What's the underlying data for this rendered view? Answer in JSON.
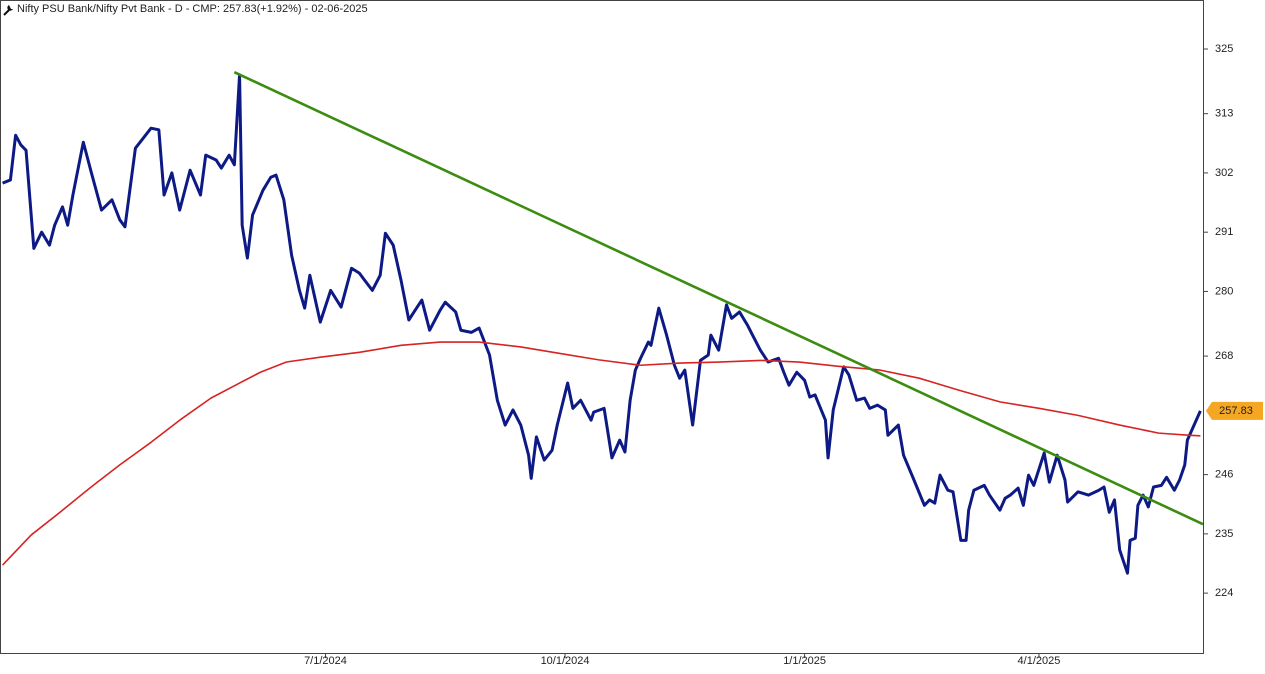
{
  "chart_data": {
    "type": "line",
    "title": "Nifty PSU Bank/Nifty Pvt Bank - D - CMP: 257.83(+1.92%) - 02-06-2025",
    "price_tag": "257.83",
    "xlim": [
      "2024-02-27",
      "2025-06-03"
    ],
    "xticks": [
      {
        "value": "2024-07-01",
        "label": "7/1/2024"
      },
      {
        "value": "2024-10-01",
        "label": "10/1/2024"
      },
      {
        "value": "2025-01-01",
        "label": "1/1/2025"
      },
      {
        "value": "2025-04-01",
        "label": "4/1/2025"
      }
    ],
    "ylim": [
      212.7,
      334.1
    ],
    "yticks": [
      224,
      235,
      246,
      268,
      280,
      291,
      302,
      313,
      325
    ],
    "grid": false,
    "series": [
      {
        "color": "#0d1a85",
        "width": 3,
        "x": [
          "2024-02-28",
          "2024-03-02",
          "2024-03-04",
          "2024-03-06",
          "2024-03-08",
          "2024-03-11",
          "2024-03-14",
          "2024-03-17",
          "2024-03-19",
          "2024-03-22",
          "2024-03-24",
          "2024-03-26",
          "2024-03-30",
          "2024-04-02",
          "2024-04-06",
          "2024-04-10",
          "2024-04-13",
          "2024-04-15",
          "2024-04-19",
          "2024-04-25",
          "2024-04-28",
          "2024-04-30",
          "2024-05-03",
          "2024-05-06",
          "2024-05-10",
          "2024-05-14",
          "2024-05-16",
          "2024-05-20",
          "2024-05-22",
          "2024-05-25",
          "2024-05-27",
          "2024-05-29",
          "2024-05-30",
          "2024-06-01",
          "2024-06-03",
          "2024-06-07",
          "2024-06-10",
          "2024-06-12",
          "2024-06-15",
          "2024-06-18",
          "2024-06-21",
          "2024-06-23",
          "2024-06-25",
          "2024-06-29",
          "2024-07-03",
          "2024-07-07",
          "2024-07-11",
          "2024-07-14",
          "2024-07-16",
          "2024-07-19",
          "2024-07-22",
          "2024-07-24",
          "2024-07-27",
          "2024-07-30",
          "2024-08-02",
          "2024-08-04",
          "2024-08-07",
          "2024-08-10",
          "2024-08-14",
          "2024-08-16",
          "2024-08-20",
          "2024-08-22",
          "2024-08-26",
          "2024-08-29",
          "2024-09-02",
          "2024-09-05",
          "2024-09-08",
          "2024-09-11",
          "2024-09-14",
          "2024-09-17",
          "2024-09-18",
          "2024-09-20",
          "2024-09-23",
          "2024-09-26",
          "2024-09-28",
          "2024-10-02",
          "2024-10-04",
          "2024-10-07",
          "2024-10-11",
          "2024-10-12",
          "2024-10-16",
          "2024-10-19",
          "2024-10-22",
          "2024-10-24",
          "2024-10-26",
          "2024-10-28",
          "2024-10-30",
          "2024-11-02",
          "2024-11-03",
          "2024-11-06",
          "2024-11-09",
          "2024-11-12",
          "2024-11-14",
          "2024-11-16",
          "2024-11-19",
          "2024-11-22",
          "2024-11-25",
          "2024-11-26",
          "2024-11-29",
          "2024-12-02",
          "2024-12-04",
          "2024-12-07",
          "2024-12-10",
          "2024-12-12",
          "2024-12-15",
          "2024-12-18",
          "2024-12-22",
          "2024-12-24",
          "2024-12-26",
          "2024-12-29",
          "2025-01-01",
          "2025-01-03",
          "2025-01-05",
          "2025-01-09",
          "2025-01-10",
          "2025-01-12",
          "2025-01-16",
          "2025-01-18",
          "2025-01-21",
          "2025-01-24",
          "2025-01-26",
          "2025-01-29",
          "2025-02-01",
          "2025-02-02",
          "2025-02-06",
          "2025-02-08",
          "2025-02-12",
          "2025-02-16",
          "2025-02-18",
          "2025-02-20",
          "2025-02-22",
          "2025-02-25",
          "2025-02-27",
          "2025-03-02",
          "2025-03-04",
          "2025-03-05",
          "2025-03-07",
          "2025-03-11",
          "2025-03-13",
          "2025-03-17",
          "2025-03-19",
          "2025-03-21",
          "2025-03-24",
          "2025-03-26",
          "2025-03-28",
          "2025-03-30",
          "2025-04-03",
          "2025-04-05",
          "2025-04-08",
          "2025-04-11",
          "2025-04-12",
          "2025-04-16",
          "2025-04-20",
          "2025-04-24",
          "2025-04-26",
          "2025-04-28",
          "2025-04-30",
          "2025-05-02",
          "2025-05-05",
          "2025-05-06",
          "2025-05-08",
          "2025-05-09",
          "2025-05-11",
          "2025-05-13",
          "2025-05-15",
          "2025-05-18",
          "2025-05-20",
          "2025-05-23",
          "2025-05-25",
          "2025-05-27",
          "2025-05-28",
          "2025-06-02"
        ],
        "values": [
          300.1,
          300.7,
          309.0,
          307.2,
          306.2,
          288.0,
          291.0,
          288.6,
          292.3,
          295.7,
          292.3,
          297.9,
          307.7,
          302.2,
          295.1,
          297.0,
          293.3,
          292.0,
          306.6,
          310.3,
          310.0,
          297.9,
          302.0,
          295.1,
          302.5,
          297.9,
          305.3,
          304.4,
          302.9,
          305.3,
          303.5,
          320.2,
          292.3,
          286.2,
          294.2,
          298.8,
          301.2,
          301.6,
          297.0,
          286.7,
          280.2,
          276.9,
          283.0,
          274.3,
          280.2,
          277.1,
          284.3,
          283.4,
          282.1,
          280.2,
          283.0,
          290.8,
          288.6,
          282.1,
          274.7,
          276.2,
          278.4,
          272.8,
          276.5,
          278.0,
          276.2,
          272.8,
          272.4,
          273.2,
          268.2,
          259.8,
          255.2,
          258.0,
          255.2,
          249.6,
          245.3,
          253.0,
          248.7,
          250.5,
          255.2,
          263.0,
          258.3,
          259.8,
          256.1,
          257.6,
          258.3,
          249.1,
          252.4,
          250.2,
          259.8,
          265.4,
          267.6,
          270.6,
          270.0,
          276.9,
          271.9,
          266.3,
          263.9,
          265.4,
          255.2,
          267.2,
          268.2,
          271.9,
          269.1,
          277.5,
          275.0,
          276.2,
          273.8,
          271.9,
          269.1,
          266.9,
          267.6,
          265.0,
          262.6,
          265.0,
          263.5,
          260.4,
          260.8,
          256.1,
          249.1,
          258.0,
          266.0,
          264.5,
          259.8,
          260.2,
          258.3,
          258.9,
          258.0,
          253.3,
          255.2,
          249.6,
          245.0,
          240.3,
          241.3,
          240.7,
          245.9,
          243.1,
          242.8,
          233.8,
          233.8,
          239.4,
          243.1,
          244.0,
          242.2,
          239.4,
          241.6,
          242.2,
          243.5,
          240.3,
          245.9,
          244.0,
          250.0,
          244.6,
          249.6,
          245.0,
          240.9,
          242.8,
          242.2,
          243.1,
          243.7,
          239.0,
          241.3,
          232.0,
          227.7,
          233.8,
          234.2,
          240.3,
          242.2,
          240.0,
          243.7,
          244.0,
          245.5,
          243.1,
          245.0,
          247.8,
          252.4,
          257.83
        ]
      },
      {
        "color": "#d62424",
        "width": 1.6,
        "x": [
          "2024-02-28",
          "2024-03-10",
          "2024-03-21",
          "2024-04-02",
          "2024-04-13",
          "2024-04-25",
          "2024-05-06",
          "2024-05-18",
          "2024-05-29",
          "2024-06-06",
          "2024-06-16",
          "2024-06-29",
          "2024-07-14",
          "2024-07-30",
          "2024-08-14",
          "2024-08-29",
          "2024-09-14",
          "2024-09-29",
          "2024-10-14",
          "2024-10-30",
          "2024-11-14",
          "2024-11-29",
          "2024-12-15",
          "2024-12-30",
          "2025-01-14",
          "2025-01-30",
          "2025-02-14",
          "2025-03-01",
          "2025-03-17",
          "2025-04-01",
          "2025-04-16",
          "2025-05-02",
          "2025-05-17",
          "2025-05-29",
          "2025-06-02"
        ],
        "values": [
          229.2,
          234.8,
          239.0,
          243.7,
          247.8,
          252.0,
          256.1,
          260.2,
          263.0,
          265.0,
          266.9,
          267.8,
          268.7,
          270.0,
          270.6,
          270.6,
          269.7,
          268.5,
          267.3,
          266.3,
          266.7,
          266.9,
          267.2,
          266.9,
          266.1,
          265.4,
          263.9,
          261.7,
          259.5,
          258.3,
          257.0,
          255.2,
          253.7,
          253.3,
          253.2
        ]
      },
      {
        "color": "#3c8c12",
        "width": 2.6,
        "x": [
          "2024-05-27",
          "2025-06-03"
        ],
        "values": [
          320.7,
          236.8
        ]
      }
    ]
  }
}
